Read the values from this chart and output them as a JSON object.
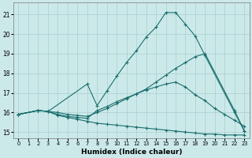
{
  "xlabel": "Humidex (Indice chaleur)",
  "xlim": [
    -0.5,
    23.5
  ],
  "ylim": [
    14.7,
    21.6
  ],
  "yticks": [
    15,
    16,
    17,
    18,
    19,
    20,
    21
  ],
  "xticks": [
    0,
    1,
    2,
    3,
    4,
    5,
    6,
    7,
    8,
    9,
    10,
    11,
    12,
    13,
    14,
    15,
    16,
    17,
    18,
    19,
    20,
    21,
    22,
    23
  ],
  "bg_color": "#cce9e9",
  "grid_color": "#aacfcf",
  "line_color": "#1a6e6e",
  "lines": [
    {
      "x": [
        0,
        2,
        3,
        4,
        5,
        6,
        7,
        8,
        9,
        10,
        11,
        12,
        13,
        14,
        15,
        16,
        17,
        18,
        19,
        20,
        21,
        22,
        23
      ],
      "y": [
        15.9,
        16.1,
        16.05,
        15.85,
        15.75,
        15.65,
        15.55,
        15.45,
        15.4,
        15.35,
        15.3,
        15.25,
        15.2,
        15.15,
        15.1,
        15.05,
        15.0,
        14.95,
        14.9,
        14.9,
        14.85,
        14.85,
        14.85
      ]
    },
    {
      "x": [
        0,
        2,
        3,
        4,
        5,
        6,
        7,
        8,
        9,
        10,
        11,
        12,
        13,
        14,
        15,
        16,
        17,
        18,
        19,
        20,
        21,
        22,
        23
      ],
      "y": [
        15.9,
        16.1,
        16.05,
        15.9,
        15.8,
        15.75,
        15.7,
        16.1,
        16.3,
        16.55,
        16.75,
        16.95,
        17.15,
        17.3,
        17.45,
        17.55,
        17.3,
        16.9,
        16.6,
        16.2,
        15.9,
        15.6,
        15.3
      ]
    },
    {
      "x": [
        0,
        2,
        3,
        7,
        8,
        9,
        10,
        11,
        12,
        13,
        14,
        15,
        16,
        17,
        18,
        19,
        22,
        23
      ],
      "y": [
        15.9,
        16.1,
        16.05,
        17.45,
        16.35,
        17.1,
        17.85,
        18.55,
        19.15,
        19.85,
        20.35,
        21.1,
        21.1,
        20.5,
        19.9,
        18.9,
        16.0,
        15.05
      ]
    },
    {
      "x": [
        0,
        2,
        3,
        4,
        5,
        6,
        7,
        8,
        9,
        10,
        11,
        12,
        13,
        14,
        15,
        16,
        17,
        18,
        19,
        22,
        23
      ],
      "y": [
        15.9,
        16.1,
        16.05,
        16.0,
        15.9,
        15.85,
        15.8,
        16.0,
        16.2,
        16.45,
        16.7,
        16.95,
        17.2,
        17.55,
        17.9,
        18.25,
        18.55,
        18.85,
        19.0,
        16.1,
        15.05
      ]
    }
  ]
}
